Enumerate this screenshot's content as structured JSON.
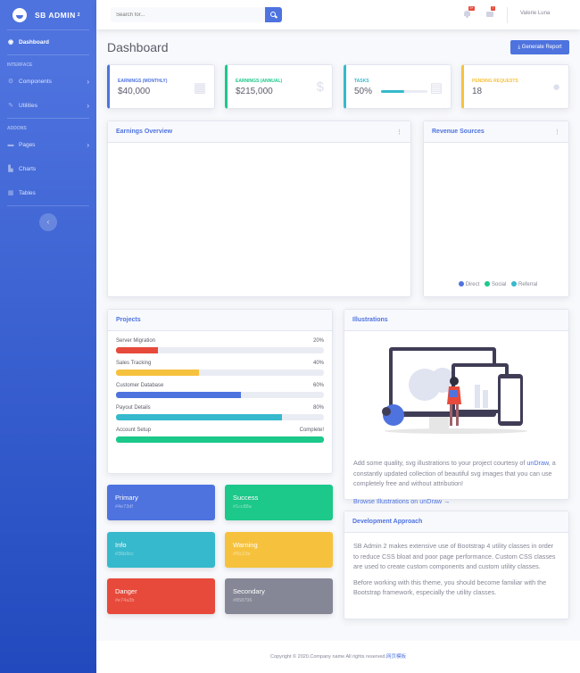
{
  "brand": {
    "name": "SB ADMIN",
    "sup": "2"
  },
  "sidebar": {
    "dashboard": "Dashboard",
    "heading_interface": "INTERFACE",
    "components": "Components",
    "utilities": "Utilities",
    "heading_addons": "ADDONS",
    "pages": "Pages",
    "charts": "Charts",
    "tables": "Tables",
    "toggle": "‹"
  },
  "topbar": {
    "search_placeholder": "Search for...",
    "alerts_badge": "3+",
    "messages_badge": "7",
    "user": "Valerie Luna"
  },
  "page": {
    "title": "Dashboard",
    "generate_report": "⤓ Generate Report"
  },
  "stats": [
    {
      "label": "Earnings (Monthly)",
      "value": "$40,000",
      "color": "#4e73df",
      "icon": "calendar-icon"
    },
    {
      "label": "Earnings (Annual)",
      "value": "$215,000",
      "color": "#1cc88a",
      "icon": "dollar-icon"
    },
    {
      "label": "Tasks",
      "value": "50%",
      "color": "#36b9cc",
      "icon": "clipboard-icon",
      "progress": 50
    },
    {
      "label": "Pending Requests",
      "value": "18",
      "color": "#f6c23e",
      "icon": "comments-icon"
    }
  ],
  "earnings_overview": {
    "title": "Earnings Overview"
  },
  "revenue_sources": {
    "title": "Revenue Sources",
    "legend": [
      {
        "label": "Direct",
        "color": "#4e73df"
      },
      {
        "label": "Social",
        "color": "#1cc88a"
      },
      {
        "label": "Referral",
        "color": "#36b9cc"
      }
    ]
  },
  "projects": {
    "title": "Projects",
    "items": [
      {
        "name": "Server Migration",
        "label": "20%",
        "value": 20,
        "color": "#e74a3b"
      },
      {
        "name": "Sales Tracking",
        "label": "40%",
        "value": 40,
        "color": "#f6c23e"
      },
      {
        "name": "Customer Database",
        "label": "60%",
        "value": 60,
        "color": "#4e73df"
      },
      {
        "name": "Payout Details",
        "label": "80%",
        "value": 80,
        "color": "#36b9cc"
      },
      {
        "name": "Account Setup",
        "label": "Complete!",
        "value": 100,
        "color": "#1cc88a"
      }
    ]
  },
  "color_cards": [
    {
      "name": "Primary",
      "hex": "#4e73df",
      "color": "#4e73df"
    },
    {
      "name": "Success",
      "hex": "#1cc88a",
      "color": "#1cc88a"
    },
    {
      "name": "Info",
      "hex": "#36b9cc",
      "color": "#36b9cc"
    },
    {
      "name": "Warning",
      "hex": "#f6c23e",
      "color": "#f6c23e"
    },
    {
      "name": "Danger",
      "hex": "#e74a3b",
      "color": "#e74a3b"
    },
    {
      "name": "Secondary",
      "hex": "#858796",
      "color": "#858796"
    }
  ],
  "illustrations": {
    "title": "Illustrations",
    "text_before": "Add some quality, svg illustrations to your project courtesy of ",
    "link": "unDraw",
    "text_after": ", a constantly updated collection of beautiful svg images that you can use completely free and without attribution!",
    "browse": "Browse Illustrations on unDraw →"
  },
  "development": {
    "title": "Development Approach",
    "p1": "SB Admin 2 makes extensive use of Bootstrap 4 utility classes in order to reduce CSS bloat and poor page performance. Custom CSS classes are used to create custom components and custom utility classes.",
    "p2": "Before working with this theme, you should become familiar with the Bootstrap framework, especially the utility classes."
  },
  "footer": {
    "text": "Copyright © 2020.Company name All rights reserved.",
    "link": "网页模板"
  }
}
